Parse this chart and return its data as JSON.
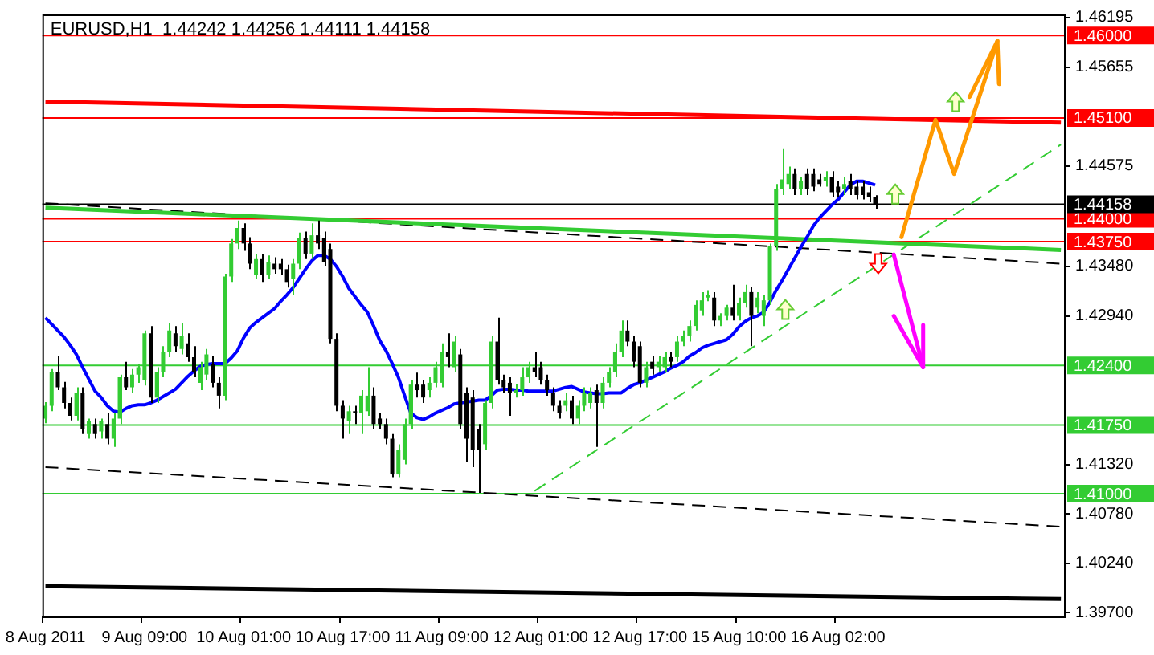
{
  "chart_data": {
    "type": "candlestick",
    "title": "EURUSD,H1  1.44242 1.44256 1.44111 1.44158",
    "categories": [
      "8 Aug 2011",
      null,
      null,
      null,
      null,
      null,
      null,
      null,
      null,
      null,
      null,
      null,
      null,
      null,
      null,
      null,
      "9 Aug 09:00",
      null,
      null,
      null,
      null,
      null,
      null,
      null,
      null,
      null,
      null,
      null,
      null,
      null,
      null,
      null,
      "10 Aug 01:00",
      null,
      null,
      null,
      null,
      null,
      null,
      null,
      null,
      null,
      null,
      null,
      null,
      null,
      null,
      null,
      "10 Aug 17:00",
      null,
      null,
      null,
      null,
      null,
      null,
      null,
      null,
      null,
      null,
      null,
      null,
      null,
      null,
      null,
      "11 Aug 09:00",
      null,
      null,
      null,
      null,
      null,
      null,
      null,
      null,
      null,
      null,
      null,
      null,
      null,
      null,
      null,
      "12 Aug 01:00",
      null,
      null,
      null,
      null,
      null,
      null,
      null,
      null,
      null,
      null,
      null,
      null,
      null,
      null,
      null,
      "12 Aug 17:00",
      null,
      null,
      null,
      null,
      null,
      null,
      null,
      null,
      null,
      null,
      null,
      null,
      null,
      null,
      null,
      "15 Aug 10:00",
      null,
      null,
      null,
      null,
      null,
      null,
      null,
      null,
      null,
      null,
      null,
      null,
      null,
      null,
      null,
      "16 Aug 02:00",
      null,
      null,
      null,
      null,
      null,
      null,
      null,
      null,
      null,
      null,
      null,
      null,
      null,
      null,
      null,
      null,
      null,
      null,
      null,
      null,
      null,
      null,
      null,
      null,
      null,
      null,
      null,
      null,
      null,
      null,
      null,
      null,
      null,
      null,
      null,
      null
    ],
    "ohlc": [
      [
        1.4182,
        1.42,
        1.4177,
        1.4196
      ],
      [
        1.4196,
        1.4236,
        1.419,
        1.4233
      ],
      [
        1.4233,
        1.425,
        1.4213,
        1.4216
      ],
      [
        1.4216,
        1.4222,
        1.4193,
        1.4199
      ],
      [
        1.4199,
        1.4205,
        1.418,
        1.4185
      ],
      [
        1.4185,
        1.4216,
        1.418,
        1.421
      ],
      [
        1.421,
        1.4216,
        1.4165,
        1.4171
      ],
      [
        1.4165,
        1.4182,
        1.416,
        1.4179
      ],
      [
        1.4176,
        1.4182,
        1.416,
        1.4165
      ],
      [
        1.4168,
        1.4182,
        1.416,
        1.4179
      ],
      [
        1.4176,
        1.4188,
        1.4154,
        1.416
      ],
      [
        1.416,
        1.4188,
        1.4151,
        1.4182
      ],
      [
        1.4182,
        1.423,
        1.4176,
        1.4227
      ],
      [
        1.4227,
        1.4244,
        1.4213,
        1.4216
      ],
      [
        1.4216,
        1.4236,
        1.421,
        1.423
      ],
      [
        1.423,
        1.4241,
        1.4221,
        1.4238
      ],
      [
        1.4224,
        1.4278,
        1.4218,
        1.4275
      ],
      [
        1.4275,
        1.4283,
        1.4199,
        1.4205
      ],
      [
        1.4205,
        1.4238,
        1.4199,
        1.4233
      ],
      [
        1.4233,
        1.4261,
        1.4227,
        1.4255
      ],
      [
        1.4255,
        1.4286,
        1.4249,
        1.4278
      ],
      [
        1.4275,
        1.4283,
        1.4255,
        1.4261
      ],
      [
        1.4258,
        1.4286,
        1.4252,
        1.4272
      ],
      [
        1.4264,
        1.4275,
        1.4244,
        1.4249
      ],
      [
        1.4249,
        1.4261,
        1.4227,
        1.4233
      ],
      [
        1.4221,
        1.4244,
        1.4213,
        1.4238
      ],
      [
        1.423,
        1.4258,
        1.4224,
        1.4252
      ],
      [
        1.4241,
        1.425,
        1.4216,
        1.4221
      ],
      [
        1.4221,
        1.4227,
        1.4193,
        1.4207
      ],
      [
        1.4207,
        1.434,
        1.4202,
        1.4337
      ],
      [
        1.4337,
        1.4378,
        1.4331,
        1.4373
      ],
      [
        1.4373,
        1.4398,
        1.4367,
        1.439
      ],
      [
        1.439,
        1.4395,
        1.4365,
        1.4373
      ],
      [
        1.4373,
        1.438,
        1.4345,
        1.4351
      ],
      [
        1.4339,
        1.4362,
        1.4334,
        1.4356
      ],
      [
        1.4356,
        1.4362,
        1.4331,
        1.4339
      ],
      [
        1.4339,
        1.436,
        1.4334,
        1.4353
      ],
      [
        1.4351,
        1.4358,
        1.434,
        1.4345
      ],
      [
        1.4351,
        1.4356,
        1.4339,
        1.4345
      ],
      [
        1.4345,
        1.435,
        1.4325,
        1.4331
      ],
      [
        1.4334,
        1.4356,
        1.4317,
        1.4351
      ],
      [
        1.4351,
        1.4385,
        1.4345,
        1.4379
      ],
      [
        1.4379,
        1.4386,
        1.4356,
        1.4362
      ],
      [
        1.4362,
        1.4395,
        1.4356,
        1.4382
      ],
      [
        1.4382,
        1.4398,
        1.4367,
        1.4373
      ],
      [
        1.4379,
        1.4386,
        1.4348,
        1.4353
      ],
      [
        1.4367,
        1.4373,
        1.4264,
        1.4269
      ],
      [
        1.4269,
        1.4275,
        1.419,
        1.4196
      ],
      [
        1.4196,
        1.4202,
        1.416,
        1.4182
      ],
      [
        1.4179,
        1.4196,
        1.4165,
        1.419
      ],
      [
        1.419,
        1.4196,
        1.4176,
        1.4188
      ],
      [
        1.4188,
        1.4213,
        1.4165,
        1.4207
      ],
      [
        1.419,
        1.4238,
        1.4185,
        1.4207
      ],
      [
        1.4207,
        1.4216,
        1.4171,
        1.4176
      ],
      [
        1.4182,
        1.4188,
        1.4171,
        1.4176
      ],
      [
        1.4176,
        1.4182,
        1.4154,
        1.416
      ],
      [
        1.416,
        1.4165,
        1.4118,
        1.4121
      ],
      [
        1.4121,
        1.4154,
        1.4118,
        1.4148
      ],
      [
        1.4137,
        1.4182,
        1.4132,
        1.4176
      ],
      [
        1.4176,
        1.4224,
        1.4171,
        1.4219
      ],
      [
        1.4219,
        1.4232,
        1.4205,
        1.4213
      ],
      [
        1.4219,
        1.4224,
        1.4199,
        1.4205
      ],
      [
        1.4213,
        1.4227,
        1.4205,
        1.4221
      ],
      [
        1.4221,
        1.4244,
        1.4216,
        1.4238
      ],
      [
        1.4221,
        1.4264,
        1.4216,
        1.4255
      ],
      [
        1.4255,
        1.4275,
        1.4238,
        1.4249
      ],
      [
        1.4238,
        1.4272,
        1.4233,
        1.4266
      ],
      [
        1.4252,
        1.4258,
        1.4171,
        1.4176
      ],
      [
        1.421,
        1.4216,
        1.4135,
        1.416
      ],
      [
        1.4205,
        1.4213,
        1.4129,
        1.4148
      ],
      [
        1.4171,
        1.4176,
        1.4101,
        1.4148
      ],
      [
        1.4154,
        1.4202,
        1.4148,
        1.4199
      ],
      [
        1.4199,
        1.4272,
        1.4193,
        1.4266
      ],
      [
        1.4266,
        1.4292,
        1.4219,
        1.4224
      ],
      [
        1.4224,
        1.423,
        1.421,
        1.4216
      ],
      [
        1.4221,
        1.4227,
        1.4185,
        1.421
      ],
      [
        1.421,
        1.422,
        1.4205,
        1.4213
      ],
      [
        1.4213,
        1.4238,
        1.4207,
        1.4227
      ],
      [
        1.4227,
        1.4244,
        1.4221,
        1.4238
      ],
      [
        1.4238,
        1.4255,
        1.4227,
        1.4233
      ],
      [
        1.4238,
        1.4244,
        1.4219,
        1.4224
      ],
      [
        1.4224,
        1.423,
        1.4207,
        1.4213
      ],
      [
        1.421,
        1.4216,
        1.419,
        1.4196
      ],
      [
        1.4196,
        1.4202,
        1.4182,
        1.4188
      ],
      [
        1.4196,
        1.421,
        1.419,
        1.4202
      ],
      [
        1.4202,
        1.4207,
        1.4176,
        1.4182
      ],
      [
        1.4182,
        1.4202,
        1.4176,
        1.4196
      ],
      [
        1.4196,
        1.4216,
        1.419,
        1.421
      ],
      [
        1.4199,
        1.4216,
        1.4193,
        1.421
      ],
      [
        1.4213,
        1.4219,
        1.4151,
        1.4199
      ],
      [
        1.4199,
        1.4227,
        1.4193,
        1.4221
      ],
      [
        1.4221,
        1.4238,
        1.4216,
        1.4233
      ],
      [
        1.4233,
        1.4264,
        1.4227,
        1.4255
      ],
      [
        1.4255,
        1.4289,
        1.4249,
        1.4278
      ],
      [
        1.4278,
        1.4289,
        1.4261,
        1.4266
      ],
      [
        1.4266,
        1.4272,
        1.4238,
        1.4244
      ],
      [
        1.4261,
        1.4266,
        1.4216,
        1.4221
      ],
      [
        1.4221,
        1.4244,
        1.4216,
        1.4238
      ],
      [
        1.4244,
        1.425,
        1.423,
        1.4236
      ],
      [
        1.4238,
        1.425,
        1.4233,
        1.4244
      ],
      [
        1.4238,
        1.4255,
        1.4233,
        1.4249
      ],
      [
        1.4249,
        1.4255,
        1.4238,
        1.4244
      ],
      [
        1.4249,
        1.4272,
        1.4244,
        1.4266
      ],
      [
        1.4266,
        1.4278,
        1.4261,
        1.4272
      ],
      [
        1.4272,
        1.4289,
        1.4266,
        1.4283
      ],
      [
        1.4283,
        1.4311,
        1.4278,
        1.4306
      ],
      [
        1.43,
        1.432,
        1.4294,
        1.4311
      ],
      [
        1.4314,
        1.4322,
        1.431,
        1.4317
      ],
      [
        1.4314,
        1.432,
        1.4283,
        1.4289
      ],
      [
        1.4289,
        1.4297,
        1.4283,
        1.4294
      ],
      [
        1.4294,
        1.4306,
        1.4289,
        1.4303
      ],
      [
        1.4303,
        1.4328,
        1.4289,
        1.4294
      ],
      [
        1.4294,
        1.4314,
        1.4289,
        1.4308
      ],
      [
        1.4308,
        1.4328,
        1.4303,
        1.432
      ],
      [
        1.432,
        1.4326,
        1.4261,
        1.4294
      ],
      [
        1.4303,
        1.432,
        1.4297,
        1.4314
      ],
      [
        1.4294,
        1.4317,
        1.4283,
        1.4311
      ],
      [
        1.4311,
        1.4373,
        1.4306,
        1.437
      ],
      [
        1.437,
        1.4438,
        1.4365,
        1.4432
      ],
      [
        1.4432,
        1.4476,
        1.4426,
        1.4443
      ],
      [
        1.4438,
        1.4457,
        1.4432,
        1.4449
      ],
      [
        1.4449,
        1.4455,
        1.4426,
        1.4432
      ],
      [
        1.4432,
        1.4446,
        1.4426,
        1.4441
      ],
      [
        1.4449,
        1.4455,
        1.4426,
        1.4432
      ],
      [
        1.4449,
        1.4455,
        1.443,
        1.4435
      ],
      [
        1.4443,
        1.4449,
        1.4435,
        1.4438
      ],
      [
        1.4441,
        1.4452,
        1.4435,
        1.4446
      ],
      [
        1.4446,
        1.4452,
        1.4424,
        1.4429
      ],
      [
        1.4435,
        1.4441,
        1.4424,
        1.4429
      ],
      [
        1.4432,
        1.4446,
        1.4426,
        1.4438
      ],
      [
        1.4441,
        1.4449,
        1.4426,
        1.4432
      ],
      [
        1.4435,
        1.4441,
        1.4421,
        1.4426
      ],
      [
        1.4435,
        1.4441,
        1.4421,
        1.4426
      ],
      [
        1.4429,
        1.4435,
        1.4418,
        1.4424
      ],
      [
        1.44242,
        1.44256,
        1.44111,
        1.44158
      ],
      null,
      null,
      null,
      null,
      null,
      null,
      null,
      null,
      null,
      null,
      null,
      null,
      null,
      null,
      null,
      null,
      null,
      null,
      null,
      null,
      null,
      null,
      null,
      null,
      null,
      null,
      null,
      null,
      null,
      null
    ],
    "colors": [
      "#33cc33",
      "#33cc33",
      "#000000",
      "#000000",
      "#000000",
      "#33cc33",
      "#000000",
      "#33cc33",
      "#000000",
      "#33cc33",
      "#000000",
      "#33cc33",
      "#33cc33",
      "#000000",
      "#33cc33",
      "#33cc33",
      "#33cc33",
      "#000000",
      "#33cc33",
      "#33cc33",
      "#33cc33",
      "#000000",
      "#33cc33",
      "#000000",
      "#000000",
      "#33cc33",
      "#33cc33",
      "#000000",
      "#000000",
      "#33cc33",
      "#33cc33",
      "#33cc33",
      "#000000",
      "#000000",
      "#33cc33",
      "#000000",
      "#33cc33",
      "#000000",
      "#000000",
      "#000000",
      "#33cc33",
      "#33cc33",
      "#000000",
      "#33cc33",
      "#000000",
      "#000000",
      "#000000",
      "#000000",
      "#000000",
      "#33cc33",
      "#000000",
      "#33cc33",
      "#33cc33",
      "#000000",
      "#000000",
      "#000000",
      "#000000",
      "#33cc33",
      "#33cc33",
      "#33cc33",
      "#000000",
      "#000000",
      "#33cc33",
      "#33cc33",
      "#33cc33",
      "#000000",
      "#33cc33",
      "#000000",
      "#000000",
      "#000000",
      "#000000",
      "#33cc33",
      "#33cc33",
      "#000000",
      "#000000",
      "#000000",
      "#33cc33",
      "#33cc33",
      "#33cc33",
      "#000000",
      "#000000",
      "#000000",
      "#000000",
      "#000000",
      "#33cc33",
      "#000000",
      "#33cc33",
      "#33cc33",
      "#33cc33",
      "#000000",
      "#33cc33",
      "#33cc33",
      "#33cc33",
      "#33cc33",
      "#000000",
      "#000000",
      "#000000",
      "#33cc33",
      "#000000",
      "#33cc33",
      "#33cc33",
      "#000000",
      "#33cc33",
      "#33cc33",
      "#33cc33",
      "#33cc33",
      "#33cc33",
      "#33cc33",
      "#000000",
      "#33cc33",
      "#33cc33",
      "#000000",
      "#33cc33",
      "#33cc33",
      "#000000",
      "#33cc33",
      "#33cc33",
      "#33cc33",
      "#33cc33",
      "#33cc33",
      "#33cc33",
      "#000000",
      "#33cc33",
      "#000000",
      "#000000",
      "#000000",
      "#33cc33",
      "#000000",
      "#000000",
      "#33cc33",
      "#000000",
      "#000000",
      "#000000",
      "#000000",
      "#000000",
      null,
      null,
      null,
      null,
      null,
      null,
      null,
      null,
      null,
      null,
      null,
      null,
      null,
      null,
      null,
      null,
      null,
      null,
      null,
      null,
      null,
      null,
      null,
      null,
      null,
      null,
      null,
      null,
      null,
      null
    ],
    "series": [
      {
        "type": "line",
        "color": "#0000ff",
        "values": [
          1.4292,
          1.4285,
          1.4278,
          1.4271,
          1.4262,
          1.4252,
          1.4238,
          1.4225,
          1.4212,
          1.4205,
          1.4196,
          1.419,
          1.4189,
          1.4193,
          1.4196,
          1.4197,
          1.4197,
          1.4199,
          1.4202,
          1.4206,
          1.421,
          1.4214,
          1.4221,
          1.4228,
          1.4234,
          1.4239,
          1.4241,
          1.4242,
          1.4242,
          1.4242,
          1.4248,
          1.4256,
          1.427,
          1.4281,
          1.4287,
          1.4292,
          1.4297,
          1.4302,
          1.431,
          1.4317,
          1.4325,
          1.4335,
          1.4345,
          1.4354,
          1.436,
          1.436,
          1.4356,
          1.4348,
          1.4337,
          1.4324,
          1.4315,
          1.4306,
          1.4298,
          1.4283,
          1.4267,
          1.4256,
          1.4242,
          1.4227,
          1.4207,
          1.4188,
          1.4183,
          1.4181,
          1.4184,
          1.4188,
          1.4191,
          1.4194,
          1.4198,
          1.4199,
          1.42,
          1.4201,
          1.4202,
          1.4202,
          1.4207,
          1.4213,
          1.4214,
          1.4214,
          1.4213,
          1.4213,
          1.4212,
          1.4212,
          1.4212,
          1.4212,
          1.4212,
          1.4214,
          1.4216,
          1.4217,
          1.4214,
          1.4211,
          1.421,
          1.4209,
          1.4209,
          1.421,
          1.421,
          1.421,
          1.4215,
          1.4219,
          1.4221,
          1.4224,
          1.4227,
          1.423,
          1.4233,
          1.4237,
          1.424,
          1.4244,
          1.425,
          1.4254,
          1.4259,
          1.4262,
          1.4264,
          1.4266,
          1.4268,
          1.4274,
          1.4282,
          1.4288,
          1.4292,
          1.4294,
          1.4298,
          1.4309,
          1.4322,
          1.4333,
          1.4345,
          1.4357,
          1.4369,
          1.438,
          1.4392,
          1.4401,
          1.4408,
          1.4415,
          1.4421,
          1.4429,
          1.4437,
          1.4441,
          1.4441,
          1.4439,
          1.4437,
          null,
          null,
          null,
          null,
          null,
          null,
          null,
          null,
          null,
          null,
          null,
          null,
          null,
          null,
          null,
          null,
          null,
          null,
          null,
          null,
          null,
          null,
          null,
          null,
          null,
          null,
          null,
          null,
          null,
          null
        ]
      },
      {
        "type": "line",
        "color": "#ff0000",
        "line_style": "solid",
        "values": [
          1.4528,
          null,
          null,
          null,
          null,
          null,
          null,
          null,
          null,
          null,
          null,
          null,
          null,
          null,
          null,
          null,
          null,
          null,
          null,
          null,
          null,
          null,
          null,
          null,
          null,
          null,
          null,
          null,
          null,
          null,
          null,
          null,
          null,
          null,
          null,
          null,
          null,
          null,
          null,
          null,
          null,
          null,
          null,
          null,
          null,
          null,
          null,
          null,
          null,
          null,
          null,
          null,
          null,
          null,
          null,
          null,
          null,
          null,
          null,
          null,
          null,
          null,
          null,
          null,
          null,
          null,
          null,
          null,
          null,
          null,
          null,
          null,
          null,
          null,
          null,
          null,
          null,
          null,
          null,
          null,
          null,
          null,
          null,
          null,
          null,
          null,
          null,
          null,
          null,
          null,
          null,
          null,
          null,
          null,
          null,
          null,
          null,
          null,
          null,
          null,
          null,
          null,
          null,
          null,
          null,
          null,
          null,
          null,
          null,
          null,
          null,
          null,
          null,
          null,
          null,
          null,
          null,
          null,
          null,
          null,
          null,
          null,
          null,
          null,
          null,
          null,
          null,
          null,
          null,
          null,
          null,
          null,
          null,
          null,
          null,
          null,
          null,
          null,
          null,
          null,
          null,
          null,
          null,
          null,
          null,
          null,
          null,
          null,
          null,
          null,
          null,
          null,
          null,
          null,
          null,
          null,
          null,
          null,
          null,
          null,
          null,
          null,
          null,
          null,
          1.4505
        ]
      },
      {
        "type": "line",
        "color": "#33cc33",
        "line_style": "solid",
        "values": [
          1.4412,
          null,
          null,
          null,
          null,
          null,
          null,
          null,
          null,
          null,
          null,
          null,
          null,
          null,
          null,
          null,
          null,
          null,
          null,
          null,
          null,
          null,
          null,
          null,
          null,
          null,
          null,
          null,
          null,
          null,
          null,
          null,
          null,
          null,
          null,
          null,
          null,
          null,
          null,
          null,
          null,
          null,
          null,
          null,
          null,
          null,
          null,
          null,
          null,
          null,
          null,
          null,
          null,
          null,
          null,
          null,
          null,
          null,
          null,
          null,
          null,
          null,
          null,
          null,
          null,
          null,
          null,
          null,
          null,
          null,
          null,
          null,
          null,
          null,
          null,
          null,
          null,
          null,
          null,
          null,
          null,
          null,
          null,
          null,
          null,
          null,
          null,
          null,
          null,
          null,
          null,
          null,
          null,
          null,
          null,
          null,
          null,
          null,
          null,
          null,
          null,
          null,
          null,
          null,
          null,
          null,
          null,
          null,
          null,
          null,
          null,
          null,
          null,
          null,
          null,
          null,
          null,
          null,
          null,
          null,
          null,
          null,
          null,
          null,
          null,
          null,
          null,
          null,
          null,
          null,
          null,
          null,
          null,
          null,
          null,
          null,
          null,
          null,
          null,
          null,
          null,
          null,
          null,
          null,
          null,
          null,
          null,
          null,
          null,
          null,
          null,
          null,
          null,
          null,
          null,
          null,
          null,
          null,
          null,
          null,
          null,
          null,
          null,
          null,
          1.4366
        ]
      },
      {
        "type": "line",
        "color": "#000000",
        "line_style": "dashed",
        "values": [
          1.4417,
          null,
          null,
          null,
          null,
          null,
          null,
          null,
          null,
          null,
          null,
          null,
          null,
          null,
          null,
          null,
          null,
          null,
          null,
          null,
          null,
          null,
          null,
          null,
          null,
          null,
          null,
          null,
          null,
          null,
          null,
          null,
          null,
          null,
          null,
          null,
          null,
          null,
          null,
          null,
          null,
          null,
          null,
          null,
          null,
          null,
          null,
          null,
          null,
          null,
          null,
          null,
          null,
          null,
          null,
          null,
          null,
          null,
          null,
          null,
          null,
          null,
          null,
          null,
          null,
          null,
          null,
          null,
          null,
          null,
          null,
          null,
          null,
          null,
          null,
          null,
          null,
          null,
          null,
          null,
          null,
          null,
          null,
          null,
          null,
          null,
          null,
          null,
          null,
          null,
          null,
          null,
          null,
          null,
          null,
          null,
          null,
          null,
          null,
          null,
          null,
          null,
          null,
          null,
          null,
          null,
          null,
          null,
          null,
          null,
          null,
          null,
          null,
          null,
          null,
          null,
          null,
          null,
          null,
          null,
          null,
          null,
          null,
          null,
          null,
          null,
          null,
          null,
          null,
          null,
          null,
          null,
          null,
          null,
          null,
          null,
          null,
          null,
          null,
          null,
          null,
          null,
          null,
          null,
          null,
          null,
          null,
          null,
          null,
          null,
          null,
          null,
          null,
          null,
          null,
          null,
          null,
          null,
          null,
          null,
          null,
          null,
          null,
          null,
          1.4351
        ]
      },
      {
        "type": "line",
        "color": "#000000",
        "line_style": "dashed",
        "values": [
          1.4129,
          null,
          null,
          null,
          null,
          null,
          null,
          null,
          null,
          null,
          null,
          null,
          null,
          null,
          null,
          null,
          null,
          null,
          null,
          null,
          null,
          null,
          null,
          null,
          null,
          null,
          null,
          null,
          null,
          null,
          null,
          null,
          null,
          null,
          null,
          null,
          null,
          null,
          null,
          null,
          null,
          null,
          null,
          null,
          null,
          null,
          null,
          null,
          null,
          null,
          null,
          null,
          null,
          null,
          null,
          null,
          null,
          null,
          null,
          null,
          null,
          null,
          null,
          null,
          null,
          null,
          null,
          null,
          null,
          null,
          null,
          null,
          null,
          null,
          null,
          null,
          null,
          null,
          null,
          null,
          null,
          null,
          null,
          null,
          null,
          null,
          null,
          null,
          null,
          null,
          null,
          null,
          null,
          null,
          null,
          null,
          null,
          null,
          null,
          null,
          null,
          null,
          null,
          null,
          null,
          null,
          null,
          null,
          null,
          null,
          null,
          null,
          null,
          null,
          null,
          null,
          null,
          null,
          null,
          null,
          null,
          null,
          null,
          null,
          null,
          null,
          null,
          null,
          null,
          null,
          null,
          null,
          null,
          null,
          null,
          null,
          null,
          null,
          null,
          null,
          null,
          null,
          null,
          null,
          null,
          null,
          null,
          null,
          null,
          null,
          null,
          null,
          null,
          null,
          null,
          null,
          null,
          null,
          null,
          null,
          null,
          null,
          null,
          null,
          1.4064
        ]
      },
      {
        "type": "line",
        "color": "#000000",
        "line_style": "solid",
        "values": [
          1.3999,
          null,
          null,
          null,
          null,
          null,
          null,
          null,
          null,
          null,
          null,
          null,
          null,
          null,
          null,
          null,
          null,
          null,
          null,
          null,
          null,
          null,
          null,
          null,
          null,
          null,
          null,
          null,
          null,
          null,
          null,
          null,
          null,
          null,
          null,
          null,
          null,
          null,
          null,
          null,
          null,
          null,
          null,
          null,
          null,
          null,
          null,
          null,
          null,
          null,
          null,
          null,
          null,
          null,
          null,
          null,
          null,
          null,
          null,
          null,
          null,
          null,
          null,
          null,
          null,
          null,
          null,
          null,
          null,
          null,
          null,
          null,
          null,
          null,
          null,
          null,
          null,
          null,
          null,
          null,
          null,
          null,
          null,
          null,
          null,
          null,
          null,
          null,
          null,
          null,
          null,
          null,
          null,
          null,
          null,
          null,
          null,
          null,
          null,
          null,
          null,
          null,
          null,
          null,
          null,
          null,
          null,
          null,
          null,
          null,
          null,
          null,
          null,
          null,
          null,
          null,
          null,
          null,
          null,
          null,
          null,
          null,
          null,
          null,
          null,
          null,
          null,
          null,
          null,
          null,
          null,
          null,
          null,
          null,
          null,
          null,
          null,
          null,
          null,
          null,
          null,
          null,
          null,
          null,
          null,
          null,
          null,
          null,
          null,
          null,
          null,
          null,
          null,
          null,
          null,
          null,
          null,
          null,
          null,
          null,
          null,
          null,
          null,
          null,
          1.3985
        ]
      },
      {
        "type": "line",
        "color": "#33cc33",
        "line_style": "dashed",
        "values": [
          null,
          null,
          null,
          null,
          null,
          null,
          null,
          null,
          null,
          null,
          null,
          null,
          null,
          null,
          null,
          null,
          null,
          null,
          null,
          null,
          null,
          null,
          null,
          null,
          null,
          null,
          null,
          null,
          null,
          null,
          null,
          null,
          null,
          null,
          null,
          null,
          null,
          null,
          null,
          null,
          null,
          null,
          null,
          null,
          null,
          null,
          null,
          null,
          null,
          null,
          null,
          null,
          null,
          null,
          null,
          null,
          null,
          null,
          null,
          null,
          null,
          null,
          null,
          null,
          null,
          null,
          null,
          null,
          null,
          null,
          null,
          null,
          null,
          null,
          null,
          null,
          null,
          null,
          null,
          1.4103,
          null,
          null,
          null,
          null,
          null,
          null,
          null,
          null,
          null,
          null,
          null,
          null,
          null,
          null,
          null,
          null,
          null,
          null,
          null,
          null,
          null,
          null,
          null,
          null,
          null,
          null,
          null,
          null,
          null,
          null,
          null,
          null,
          null,
          null,
          null,
          null,
          null,
          null,
          null,
          null,
          null,
          null,
          null,
          null,
          null,
          null,
          null,
          null,
          null,
          null,
          null,
          null,
          null,
          null,
          null,
          null,
          null,
          null,
          null,
          null,
          null,
          null,
          null,
          null,
          null,
          null,
          null,
          null,
          null,
          null,
          null,
          null,
          null,
          null,
          null,
          null,
          null,
          null,
          null,
          null,
          null,
          null,
          null,
          null,
          1.4481
        ]
      }
    ],
    "ylim": [
      1.3966,
      1.4623
    ],
    "yticks": [
      {
        "value": 1.397,
        "label": "1.39700"
      },
      {
        "value": 1.4024,
        "label": "1.40240"
      },
      {
        "value": 1.4078,
        "label": "1.40780"
      },
      {
        "value": 1.4132,
        "label": "1.41320"
      },
      {
        "value": 1.4294,
        "label": "1.42940"
      },
      {
        "value": 1.4348,
        "label": "1.43480"
      },
      1.44575,
      1.45655,
      1.46195
    ],
    "ref_lines": [
      {
        "axis": "y",
        "value": 1.46,
        "label": "1.46000",
        "color": "#ff0000"
      },
      {
        "axis": "y",
        "value": 1.451,
        "label": "1.45100",
        "color": "#ff0000"
      },
      {
        "axis": "y",
        "value": 1.44,
        "label": "1.44000",
        "color": "#ff0000"
      },
      {
        "axis": "y",
        "value": 1.4375,
        "label": "1.43750",
        "color": "#ff0000"
      },
      {
        "axis": "y",
        "value": 1.424,
        "label": "1.42400",
        "color": "#33cc33"
      },
      {
        "axis": "y",
        "value": 1.4175,
        "label": "1.41750",
        "color": "#33cc33"
      },
      {
        "axis": "y",
        "value": 1.41,
        "label": "1.41000",
        "color": "#33cc33"
      },
      {
        "axis": "y",
        "value": 1.44158,
        "label": "1.44158",
        "color": "#000000"
      }
    ]
  }
}
